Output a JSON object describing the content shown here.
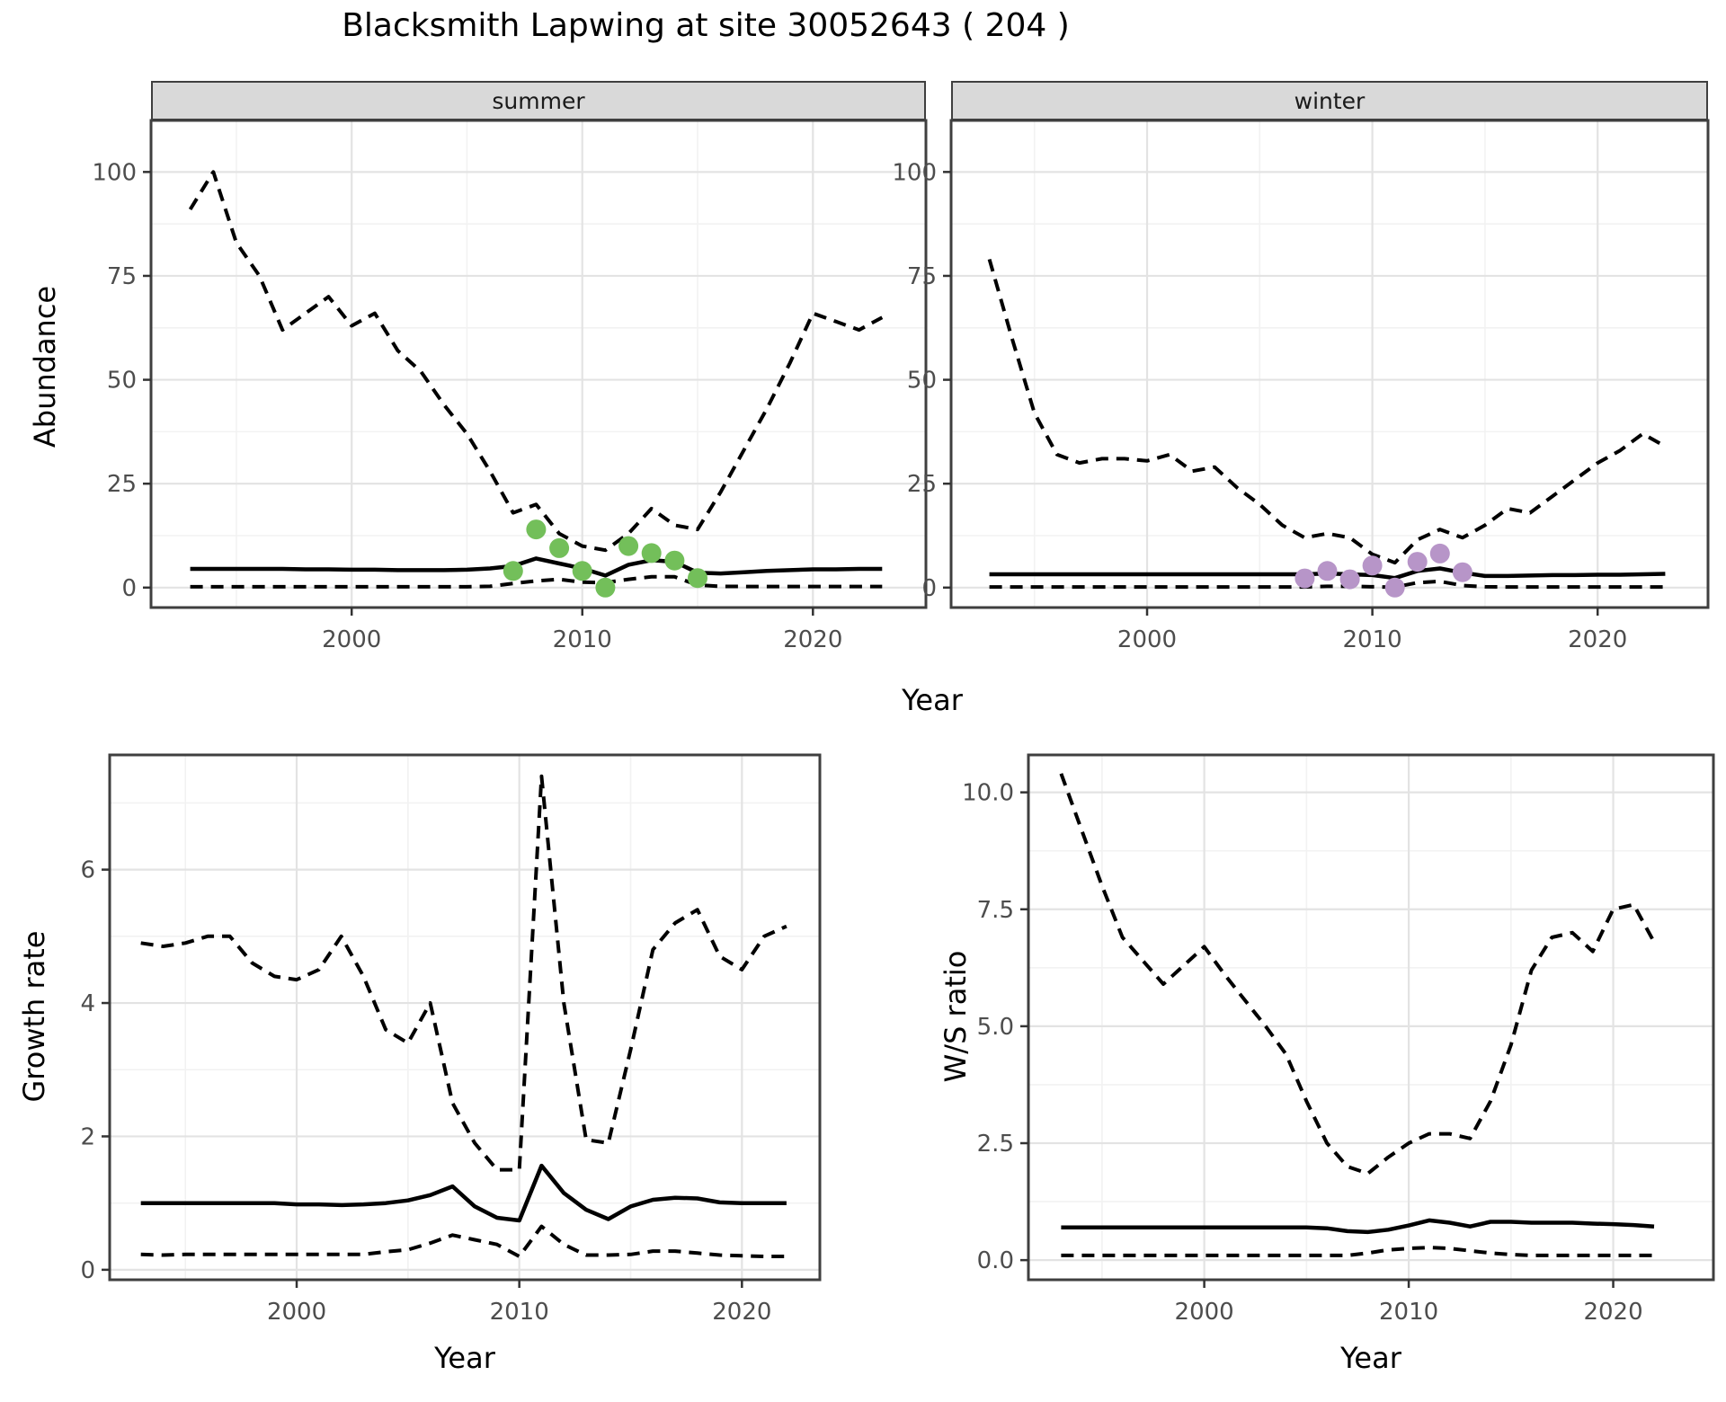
{
  "title": "Blacksmith Lapwing at site 30052643 ( 204 )",
  "facets": [
    "summer",
    "winter"
  ],
  "axis_titles": {
    "abundance": "Abundance",
    "year": "Year",
    "growth": "Growth rate",
    "ws": "W/S ratio"
  },
  "colors": {
    "summer_dot": "#73bf5a",
    "winter_dot": "#b795c8",
    "line": "#000000",
    "grid_major": "#e3e3e3",
    "grid_minor": "#f2f2f2",
    "panel_border": "#3f3f3f",
    "tick_mark": "#333333",
    "tick_text": "#4d4d4d",
    "strip_bg": "#d9d9d9"
  },
  "chart_data": [
    {
      "name": "abundance-summer",
      "type": "line",
      "facet": "summer",
      "ylabel": "Abundance",
      "xlabel": "Year",
      "legend": "none",
      "grid": true,
      "x": [
        1993,
        1994,
        1995,
        1996,
        1997,
        1998,
        1999,
        2000,
        2001,
        2002,
        2003,
        2004,
        2005,
        2006,
        2007,
        2008,
        2009,
        2010,
        2011,
        2012,
        2013,
        2014,
        2015,
        2016,
        2017,
        2018,
        2019,
        2020,
        2021,
        2022,
        2023
      ],
      "series": [
        {
          "name": "ci_upper",
          "style": "dashed",
          "values": [
            91,
            100,
            83,
            75,
            62,
            66,
            70,
            63,
            66,
            57,
            52,
            44,
            37,
            28,
            18,
            20,
            13,
            10,
            9,
            13,
            19,
            15,
            14,
            23,
            33,
            43,
            54,
            66,
            64,
            62,
            65
          ]
        },
        {
          "name": "median",
          "style": "solid",
          "values": [
            4.5,
            4.5,
            4.5,
            4.5,
            4.5,
            4.4,
            4.4,
            4.3,
            4.3,
            4.2,
            4.2,
            4.2,
            4.3,
            4.6,
            5.2,
            7,
            5.8,
            4.6,
            2.9,
            5.5,
            6.6,
            6.2,
            3.6,
            3.4,
            3.7,
            4,
            4.2,
            4.4,
            4.4,
            4.5,
            4.5
          ]
        },
        {
          "name": "ci_lower",
          "style": "dashed",
          "values": [
            0.2,
            0.2,
            0.2,
            0.2,
            0.2,
            0.2,
            0.2,
            0.2,
            0.2,
            0.2,
            0.2,
            0.2,
            0.2,
            0.3,
            1,
            1.6,
            2,
            1.3,
            1.2,
            2,
            2.6,
            2.6,
            0.6,
            0.3,
            0.25,
            0.25,
            0.25,
            0.25,
            0.25,
            0.25,
            0.25
          ]
        }
      ],
      "points": {
        "name": "observed-counts",
        "color": "#73bf5a",
        "x": [
          2007,
          2008,
          2009,
          2010,
          2011,
          2012,
          2013,
          2014,
          2015
        ],
        "y": [
          4,
          14,
          9.5,
          4,
          0,
          10,
          8.3,
          6.5,
          2.3
        ]
      },
      "xlim": [
        1991.3,
        2024.9
      ],
      "ylim": [
        -4.8,
        112.4
      ],
      "xticks": [
        2000,
        2010,
        2020
      ],
      "xtick_labels": [
        "2000",
        "2010",
        "2020"
      ],
      "xminor": [
        1995,
        2005,
        2015
      ],
      "yticks": [
        0,
        25,
        50,
        75,
        100
      ],
      "ytick_labels": [
        "0",
        "25",
        "50",
        "75",
        "100"
      ],
      "yminor": [
        12.5,
        37.5,
        62.5,
        87.5
      ]
    },
    {
      "name": "abundance-winter",
      "type": "line",
      "facet": "winter",
      "ylabel": "Abundance",
      "xlabel": "Year",
      "legend": "none",
      "grid": true,
      "x": [
        1993,
        1994,
        1995,
        1996,
        1997,
        1998,
        1999,
        2000,
        2001,
        2002,
        2003,
        2004,
        2005,
        2006,
        2007,
        2008,
        2009,
        2010,
        2011,
        2012,
        2013,
        2014,
        2015,
        2016,
        2017,
        2018,
        2019,
        2020,
        2021,
        2022,
        2023
      ],
      "series": [
        {
          "name": "ci_upper",
          "style": "dashed",
          "values": [
            79,
            60,
            42,
            32,
            30,
            31,
            31,
            30.5,
            32,
            28,
            29,
            24,
            20,
            15,
            12,
            13,
            12,
            8,
            6,
            11.5,
            14,
            12,
            15,
            19,
            18,
            22,
            26,
            30,
            33,
            37,
            34
          ]
        },
        {
          "name": "median",
          "style": "solid",
          "values": [
            3.2,
            3.2,
            3.2,
            3.2,
            3.2,
            3.2,
            3.2,
            3.2,
            3.2,
            3.2,
            3.2,
            3.2,
            3.2,
            3.2,
            3.2,
            3.4,
            3.2,
            3,
            2.3,
            4,
            4.6,
            3.6,
            2.8,
            2.8,
            2.9,
            3,
            3,
            3.1,
            3.1,
            3.2,
            3.3
          ]
        },
        {
          "name": "ci_lower",
          "style": "dashed",
          "values": [
            0.15,
            0.15,
            0.15,
            0.15,
            0.15,
            0.15,
            0.15,
            0.15,
            0.15,
            0.15,
            0.15,
            0.15,
            0.15,
            0.15,
            0.15,
            0.3,
            0.3,
            0.2,
            0.1,
            1.2,
            1.5,
            0.5,
            0.2,
            0.15,
            0.15,
            0.15,
            0.15,
            0.15,
            0.15,
            0.15,
            0.15
          ]
        }
      ],
      "points": {
        "name": "observed-counts",
        "color": "#b795c8",
        "x": [
          2007,
          2008,
          2009,
          2010,
          2011,
          2012,
          2013,
          2014
        ],
        "y": [
          2.2,
          4,
          2,
          5.3,
          0,
          6.2,
          8.2,
          3.7
        ]
      },
      "xlim": [
        1991.3,
        2024.9
      ],
      "ylim": [
        -4.8,
        112.4
      ],
      "xticks": [
        2000,
        2010,
        2020
      ],
      "xtick_labels": [
        "2000",
        "2010",
        "2020"
      ],
      "xminor": [
        1995,
        2005,
        2015
      ],
      "yticks": [
        0,
        25,
        50,
        75,
        100
      ],
      "ytick_labels": [
        "0",
        "25",
        "50",
        "75",
        "100"
      ],
      "yminor": [
        12.5,
        37.5,
        62.5,
        87.5
      ]
    },
    {
      "name": "growth-rate",
      "type": "line",
      "ylabel": "Growth rate",
      "xlabel": "Year",
      "legend": "none",
      "grid": true,
      "x": [
        1993,
        1994,
        1995,
        1996,
        1997,
        1998,
        1999,
        2000,
        2001,
        2002,
        2003,
        2004,
        2005,
        2006,
        2007,
        2008,
        2009,
        2010,
        2011,
        2012,
        2013,
        2014,
        2015,
        2016,
        2017,
        2018,
        2019,
        2020,
        2021,
        2022
      ],
      "series": [
        {
          "name": "ci_upper",
          "style": "dashed",
          "values": [
            4.9,
            4.85,
            4.9,
            5,
            5,
            4.6,
            4.4,
            4.35,
            4.5,
            5,
            4.4,
            3.6,
            3.4,
            4,
            2.5,
            1.9,
            1.5,
            1.5,
            7.4,
            4,
            1.95,
            1.9,
            3.3,
            4.8,
            5.2,
            5.4,
            4.7,
            4.5,
            5,
            5.15
          ]
        },
        {
          "name": "median",
          "style": "solid",
          "values": [
            1,
            1,
            1,
            1,
            1,
            1,
            1,
            0.98,
            0.98,
            0.97,
            0.98,
            1,
            1.04,
            1.12,
            1.25,
            0.95,
            0.78,
            0.74,
            1.56,
            1.15,
            0.9,
            0.76,
            0.95,
            1.05,
            1.08,
            1.07,
            1.01,
            1,
            1,
            1
          ]
        },
        {
          "name": "ci_lower",
          "style": "dashed",
          "values": [
            0.23,
            0.22,
            0.23,
            0.23,
            0.23,
            0.23,
            0.23,
            0.23,
            0.23,
            0.23,
            0.23,
            0.27,
            0.3,
            0.4,
            0.52,
            0.45,
            0.38,
            0.2,
            0.65,
            0.38,
            0.22,
            0.22,
            0.23,
            0.28,
            0.28,
            0.25,
            0.22,
            0.21,
            0.2,
            0.2
          ]
        }
      ],
      "xlim": [
        1991.6,
        2023.5
      ],
      "ylim": [
        -0.15,
        7.72
      ],
      "xticks": [
        2000,
        2010,
        2020
      ],
      "xtick_labels": [
        "2000",
        "2010",
        "2020"
      ],
      "xminor": [
        1995,
        2005,
        2015
      ],
      "yticks": [
        0,
        2,
        4,
        6
      ],
      "ytick_labels": [
        "0",
        "2",
        "4",
        "6"
      ],
      "yminor": [
        1,
        3,
        5,
        7
      ]
    },
    {
      "name": "ws-ratio",
      "type": "line",
      "ylabel": "W/S ratio",
      "xlabel": "Year",
      "legend": "none",
      "grid": true,
      "x": [
        1993,
        1994,
        1995,
        1996,
        1997,
        1998,
        1999,
        2000,
        2001,
        2002,
        2003,
        2004,
        2005,
        2006,
        2007,
        2008,
        2009,
        2010,
        2011,
        2012,
        2013,
        2014,
        2015,
        2016,
        2017,
        2018,
        2019,
        2020,
        2021,
        2022
      ],
      "series": [
        {
          "name": "ci_upper",
          "style": "dashed",
          "values": [
            10.4,
            9.2,
            8,
            6.9,
            6.4,
            5.9,
            6.3,
            6.7,
            6.1,
            5.55,
            5,
            4.4,
            3.4,
            2.5,
            2,
            1.85,
            2.2,
            2.5,
            2.7,
            2.7,
            2.6,
            3.4,
            4.6,
            6.2,
            6.9,
            7,
            6.6,
            7.5,
            7.6,
            6.8
          ]
        },
        {
          "name": "median",
          "style": "solid",
          "values": [
            0.7,
            0.7,
            0.7,
            0.7,
            0.7,
            0.7,
            0.7,
            0.7,
            0.7,
            0.7,
            0.7,
            0.7,
            0.7,
            0.68,
            0.62,
            0.6,
            0.65,
            0.74,
            0.85,
            0.8,
            0.72,
            0.82,
            0.82,
            0.8,
            0.8,
            0.8,
            0.78,
            0.77,
            0.75,
            0.72
          ]
        },
        {
          "name": "ci_lower",
          "style": "dashed",
          "values": [
            0.1,
            0.1,
            0.1,
            0.1,
            0.1,
            0.1,
            0.1,
            0.1,
            0.1,
            0.1,
            0.1,
            0.1,
            0.1,
            0.1,
            0.1,
            0.15,
            0.22,
            0.25,
            0.27,
            0.25,
            0.2,
            0.15,
            0.12,
            0.1,
            0.1,
            0.1,
            0.1,
            0.1,
            0.1,
            0.1
          ]
        }
      ],
      "xlim": [
        1991.4,
        2024.9
      ],
      "ylim": [
        -0.42,
        10.8
      ],
      "xticks": [
        2000,
        2010,
        2020
      ],
      "xtick_labels": [
        "2000",
        "2010",
        "2020"
      ],
      "xminor": [
        1995,
        2005,
        2015
      ],
      "yticks": [
        0,
        2.5,
        5,
        7.5,
        10
      ],
      "ytick_labels": [
        "0.0",
        "2.5",
        "5.0",
        "7.5",
        "10.0"
      ],
      "yminor": [
        1.25,
        3.75,
        6.25,
        8.75
      ]
    }
  ]
}
